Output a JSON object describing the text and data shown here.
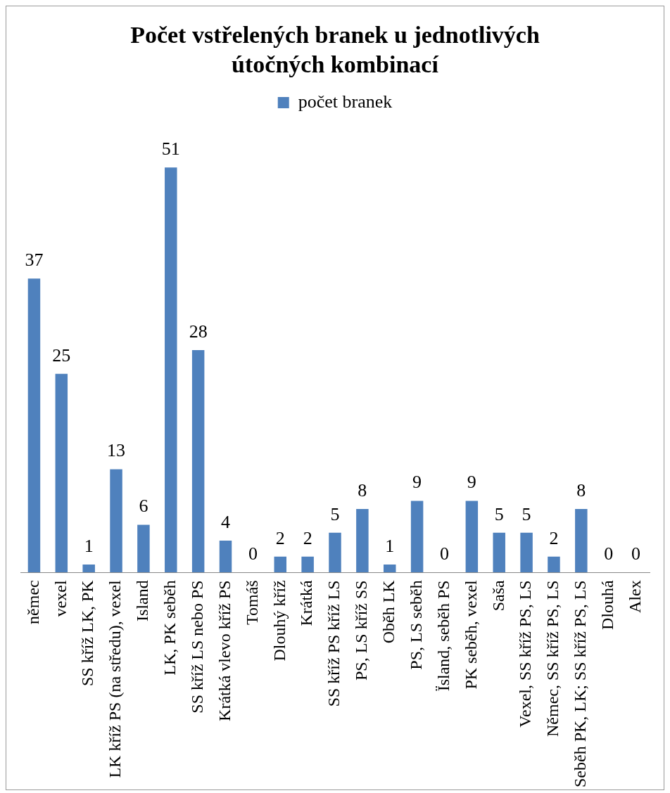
{
  "chart_data": {
    "type": "bar",
    "title": "Počet vstřelených branek u jednotlivých útočných kombinací",
    "categories": [
      "němec",
      "vexel",
      "SS kříž LK, PK",
      "LK kříž PS (na středu), vexel",
      "Island",
      "LK, PK seběh",
      "SS kříž LS nebo PS",
      "Krátká vlevo kříž PS",
      "Tomáš",
      "Dlouhý kříž",
      "Krátká",
      "SS kříž PS kříž LS",
      "PS, LS kříž SS",
      "Oběh LK",
      "PS, LS seběh",
      "Ïsland, seběh PS",
      "PK seběh, vexel",
      "Saša",
      "Vexel, SS kříž PS, LS",
      "Němec, SS kříž PS, LS",
      "Seběh PK, LK; SS kříž PS, LS",
      "Dlouhá",
      "Alex"
    ],
    "series": [
      {
        "name": "počet branek",
        "color": "#4f81bd",
        "values": [
          37,
          25,
          1,
          13,
          6,
          51,
          28,
          4,
          0,
          2,
          2,
          5,
          8,
          1,
          9,
          0,
          9,
          5,
          5,
          2,
          8,
          0,
          0
        ]
      }
    ],
    "data_labels": true,
    "legend": "top",
    "grid": false
  }
}
